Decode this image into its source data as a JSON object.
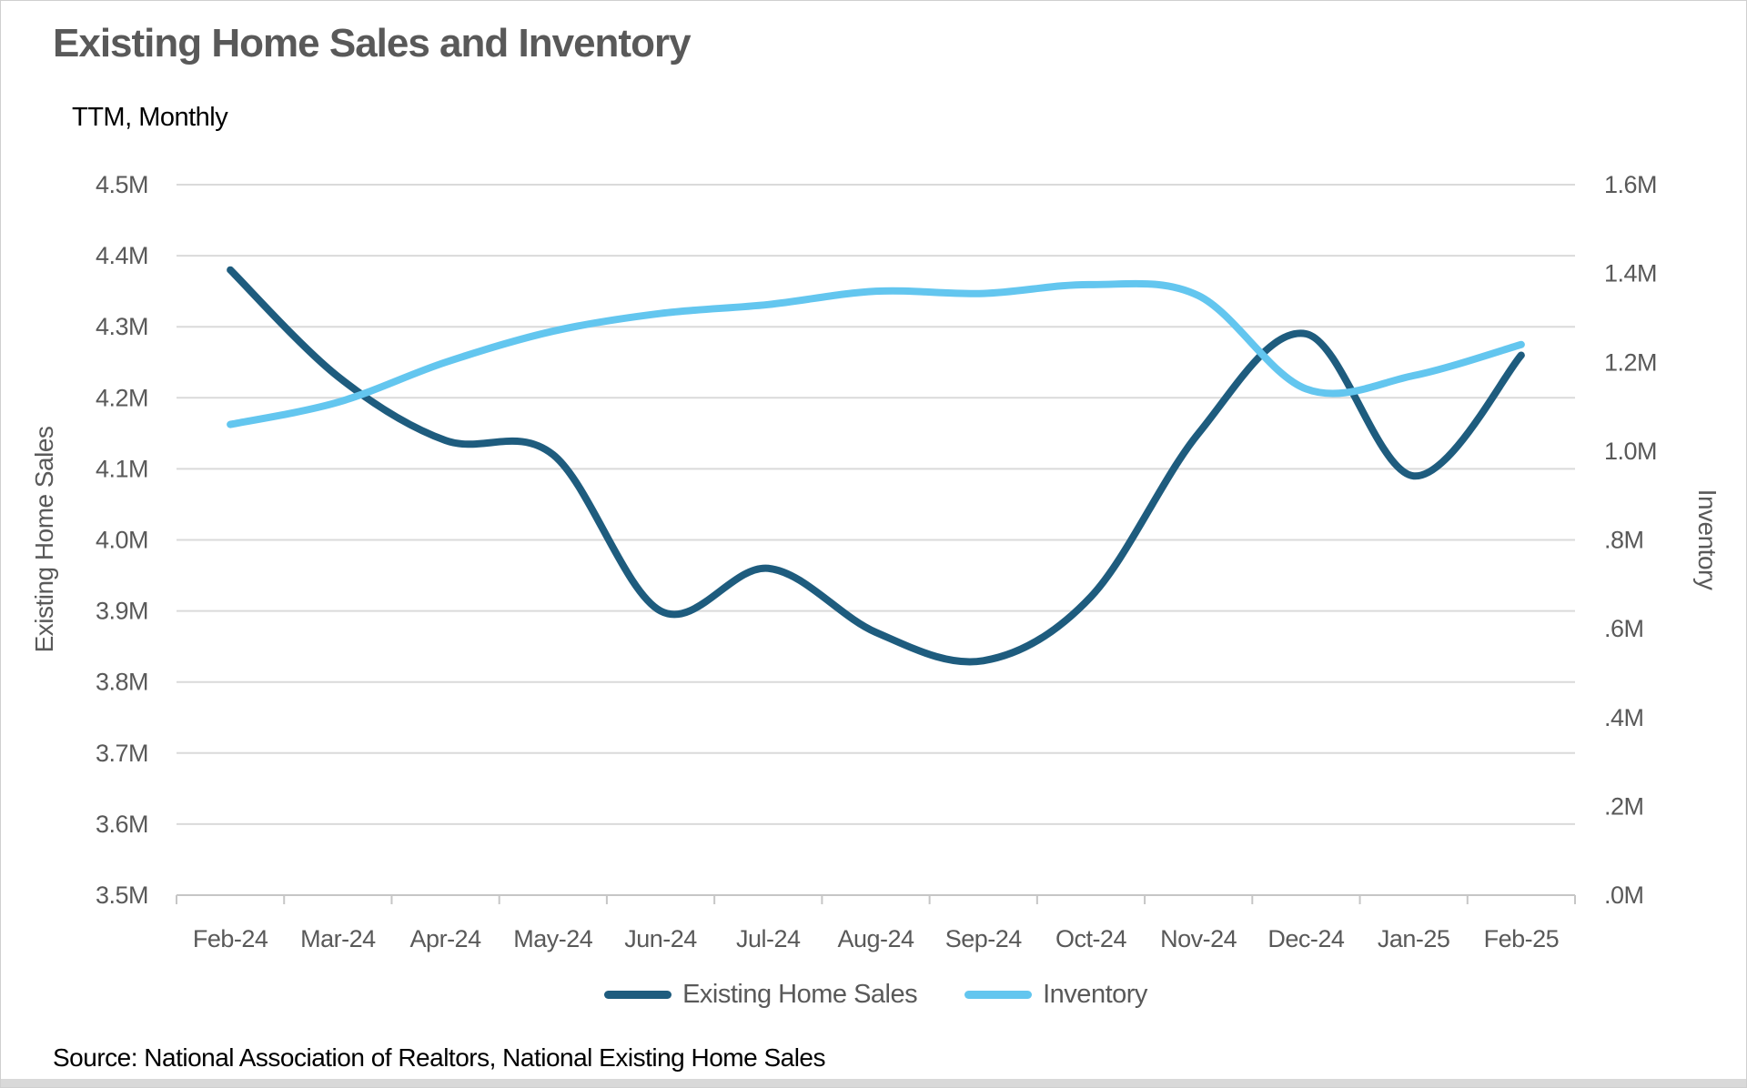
{
  "title": "Existing Home Sales and Inventory",
  "subtitle": "TTM, Monthly",
  "source": "Source: National Association of Realtors, National Existing Home Sales",
  "colors": {
    "sales_line": "#1E5C7E",
    "inventory_line": "#63C6EF",
    "gridline": "#DADADA",
    "axis_line": "#C6C6C6",
    "label_text": "#595959",
    "title_text": "#595959",
    "body_text": "#000000",
    "bottom_strip": "#d9d9d9"
  },
  "chart_data": {
    "type": "line",
    "smooth": true,
    "grid": true,
    "legend_position": "bottom",
    "categories": [
      "Feb-24",
      "Mar-24",
      "Apr-24",
      "May-24",
      "Jun-24",
      "Jul-24",
      "Aug-24",
      "Sep-24",
      "Oct-24",
      "Nov-24",
      "Dec-24",
      "Jan-25",
      "Feb-25"
    ],
    "series": [
      {
        "name": "Existing Home Sales",
        "axis": "left",
        "color": "#1E5C7E",
        "values": [
          4.38,
          4.23,
          4.14,
          4.12,
          3.9,
          3.96,
          3.87,
          3.83,
          3.92,
          4.15,
          4.29,
          4.09,
          4.26
        ]
      },
      {
        "name": "Inventory",
        "axis": "right",
        "color": "#63C6EF",
        "values": [
          1.06,
          1.11,
          1.2,
          1.27,
          1.31,
          1.33,
          1.36,
          1.355,
          1.375,
          1.35,
          1.14,
          1.17,
          1.24
        ]
      }
    ],
    "left_axis": {
      "title": "Existing Home Sales",
      "min": 3.5,
      "max": 4.5,
      "tick_labels": [
        "4.5M",
        "4.4M",
        "4.3M",
        "4.2M",
        "4.1M",
        "4.0M",
        "3.9M",
        "3.8M",
        "3.7M",
        "3.6M",
        "3.5M"
      ]
    },
    "right_axis": {
      "title": "Inventory",
      "min": 0.0,
      "max": 1.6,
      "tick_labels": [
        "1.6M",
        "1.4M",
        "1.2M",
        "1.0M",
        ".8M",
        ".6M",
        ".4M",
        ".2M",
        ".0M"
      ]
    }
  }
}
